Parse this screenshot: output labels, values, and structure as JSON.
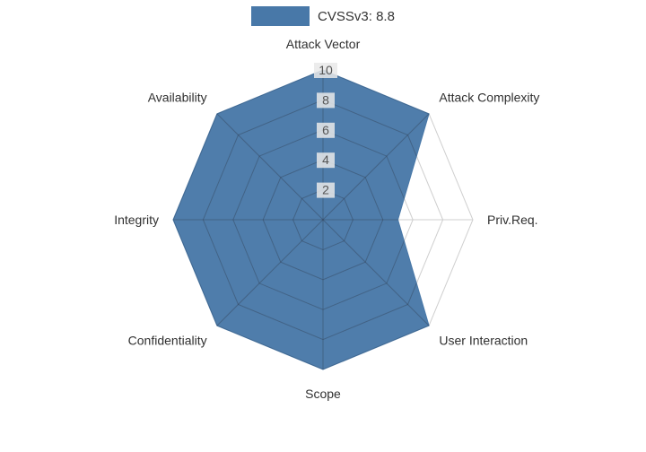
{
  "legend": {
    "label": "CVSSv3: 8.8",
    "swatch_color": "#4878a8"
  },
  "chart_data": {
    "type": "radar",
    "title": "CVSSv3: 8.8",
    "categories": [
      "Attack Vector",
      "Attack Complexity",
      "Priv.Req.",
      "User Interaction",
      "Scope",
      "Confidentiality",
      "Integrity",
      "Availability"
    ],
    "series": [
      {
        "name": "CVSSv3: 8.8",
        "values": [
          10,
          10,
          5,
          10,
          10,
          10,
          10,
          10
        ],
        "color": "#4878a8"
      }
    ],
    "radial_ticks": [
      2,
      4,
      6,
      8,
      10
    ],
    "max": 10,
    "grid": "polygon",
    "legend_position": "top",
    "grid_color": "#cfcfcf",
    "inner_grid_color": "rgba(45,55,70,0.35)",
    "axis_label_color": "#303030",
    "tick_label_color": "#555555",
    "tick_bg_color": "#e9e9e9"
  }
}
